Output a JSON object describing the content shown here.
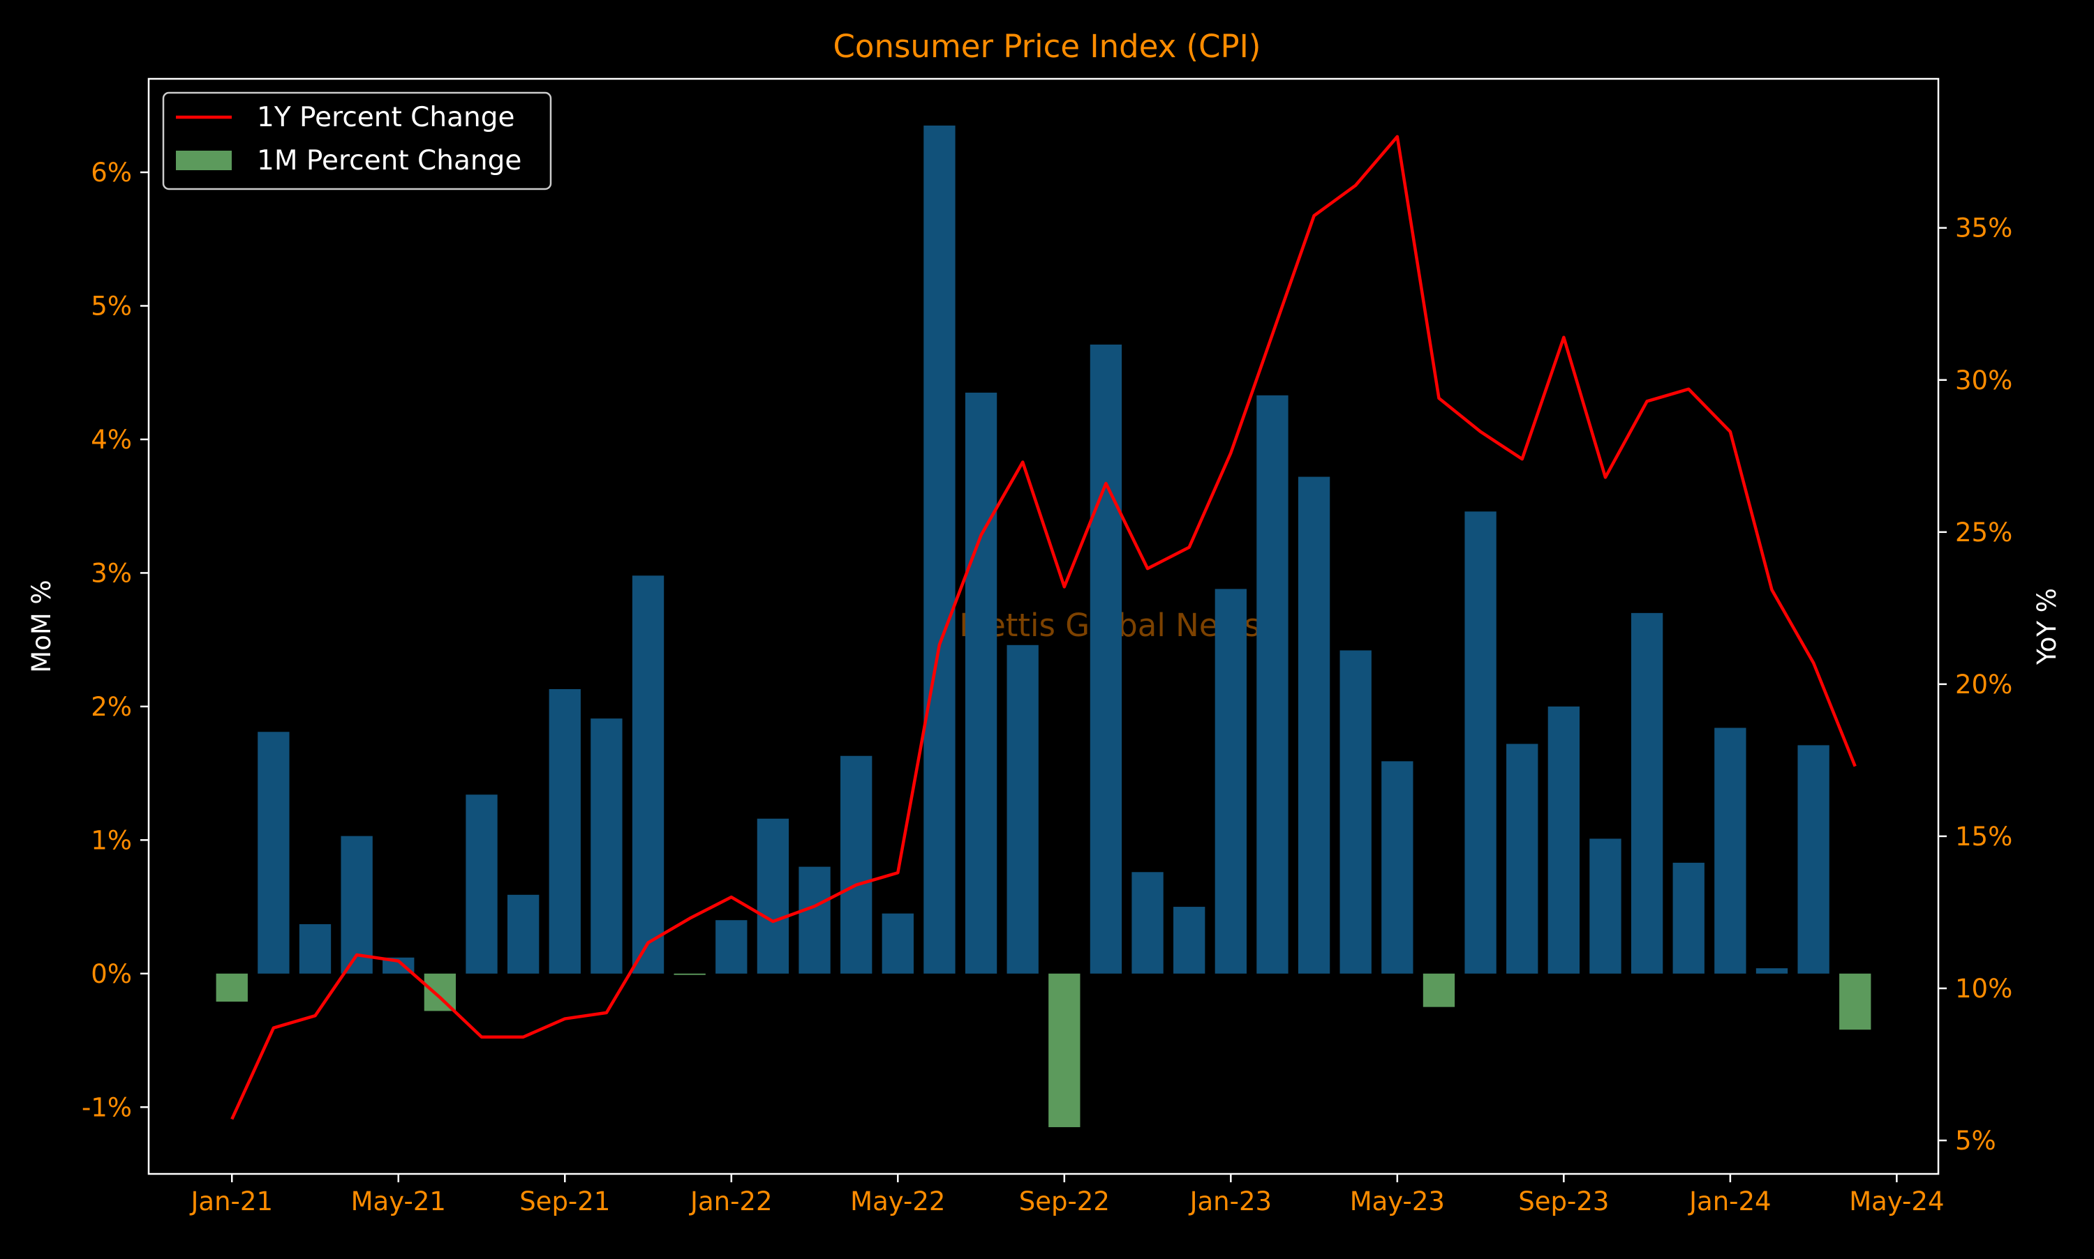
{
  "chart_data": {
    "type": "bar+line",
    "title": "Consumer Price Index (CPI)",
    "watermark": "Mettis Global News",
    "ylabel_left": "MoM %",
    "ylabel_right": "YoY %",
    "ylim_left": [
      -1.5,
      6.7
    ],
    "ylim_right": [
      3.9,
      39.9
    ],
    "xlim_months": [
      "Nov-20",
      "Jun-24"
    ],
    "left_ticks": [
      "-1%",
      "0%",
      "1%",
      "2%",
      "3%",
      "4%",
      "5%",
      "6%"
    ],
    "right_ticks": [
      "5%",
      "10%",
      "15%",
      "20%",
      "25%",
      "30%",
      "35%"
    ],
    "x_ticks": [
      "Jan-21",
      "May-21",
      "Sep-21",
      "Jan-22",
      "May-22",
      "Sep-22",
      "Jan-23",
      "May-23",
      "Sep-23",
      "Jan-24",
      "May-24"
    ],
    "months": [
      "Jan-21",
      "Feb-21",
      "Mar-21",
      "Apr-21",
      "May-21",
      "Jun-21",
      "Jul-21",
      "Aug-21",
      "Sep-21",
      "Oct-21",
      "Nov-21",
      "Dec-21",
      "Jan-22",
      "Feb-22",
      "Mar-22",
      "Apr-22",
      "May-22",
      "Jun-22",
      "Jul-22",
      "Aug-22",
      "Sep-22",
      "Oct-22",
      "Nov-22",
      "Dec-22",
      "Jan-23",
      "Feb-23",
      "Mar-23",
      "Apr-23",
      "May-23",
      "Jun-23",
      "Jul-23",
      "Aug-23",
      "Sep-23",
      "Oct-23",
      "Nov-23",
      "Dec-23",
      "Jan-24",
      "Feb-24",
      "Mar-24",
      "Apr-24"
    ],
    "legend": [
      {
        "label": "1Y Percent Change",
        "type": "line",
        "color": "#ff0000"
      },
      {
        "label": "1M Percent Change",
        "type": "patch",
        "color": "#5c9a5c"
      }
    ],
    "legend_position": "top-left",
    "grid": false,
    "series": [
      {
        "name": "1M Percent Change",
        "axis": "left",
        "type": "bar",
        "values": [
          -0.21,
          1.81,
          0.37,
          1.03,
          0.12,
          -0.28,
          1.34,
          0.59,
          2.13,
          1.91,
          2.98,
          -0.01,
          0.4,
          1.16,
          0.8,
          1.63,
          0.45,
          6.35,
          4.35,
          2.46,
          -1.15,
          4.71,
          0.76,
          0.5,
          2.88,
          4.33,
          3.72,
          2.42,
          1.59,
          -0.25,
          3.46,
          1.72,
          2.0,
          1.01,
          2.7,
          0.83,
          1.84,
          0.04,
          1.71,
          -0.42
        ]
      },
      {
        "name": "1Y Percent Change",
        "axis": "right",
        "type": "line",
        "values": [
          5.7,
          8.7,
          9.1,
          11.1,
          10.9,
          9.7,
          8.4,
          8.4,
          9.0,
          9.2,
          11.5,
          12.3,
          13.0,
          12.2,
          12.7,
          13.4,
          13.8,
          21.3,
          24.9,
          27.3,
          23.2,
          26.6,
          23.8,
          24.5,
          27.6,
          31.5,
          35.4,
          36.4,
          38.0,
          29.4,
          28.3,
          27.4,
          31.4,
          26.8,
          29.3,
          29.7,
          28.3,
          23.1,
          20.7,
          17.3
        ]
      }
    ],
    "colors": {
      "background": "#000000",
      "bar_positive": "#11517a",
      "bar_negative": "#5c9a5c",
      "line": "#ff0000",
      "tick_labels": "#ff8c00",
      "title": "#ff8c00",
      "axis_label": "#ffffff",
      "frame": "#ffffff",
      "watermark": "#8b4a00"
    }
  }
}
